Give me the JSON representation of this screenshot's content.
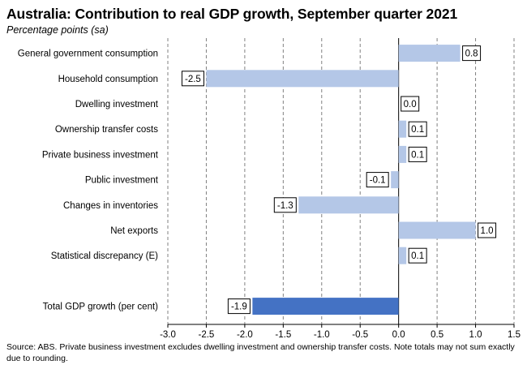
{
  "title": "Australia:  Contribution  to real GDP growth, September quarter 2021",
  "subtitle": "Percentage points (sa)",
  "source": "Source: ABS. Private business investment excludes dwelling investment and ownership transfer costs.  Note totals may not sum exactly due to rounding.",
  "chart_data": {
    "type": "bar",
    "orientation": "horizontal",
    "title": "Australia:  Contribution  to real GDP growth, September quarter 2021",
    "subtitle": "Percentage points (sa)",
    "categories": [
      "General government consumption",
      "Household consumption",
      "Dwelling investment",
      "Ownership transfer costs",
      "Private business investment",
      "Public investment",
      "Changes in inventories",
      "Net exports",
      "Statistical discrepancy (E)",
      "",
      "Total GDP growth (per cent)"
    ],
    "values": [
      0.8,
      -2.5,
      0.0,
      0.1,
      0.1,
      -0.1,
      -1.3,
      1.0,
      0.1,
      null,
      -1.9
    ],
    "data_labels": [
      "0.8",
      "-2.5",
      "0.0",
      "0.1",
      "0.1",
      "-0.1",
      "-1.3",
      "1.0",
      "0.1",
      "",
      "-1.9"
    ],
    "xlim": [
      -3.0,
      1.5
    ],
    "xticks": [
      "-3.0",
      "-2.5",
      "-2.0",
      "-1.5",
      "-1.0",
      "-0.5",
      "0.0",
      "0.5",
      "1.0",
      "1.5"
    ],
    "xtick_values": [
      -3.0,
      -2.5,
      -2.0,
      -1.5,
      -1.0,
      -0.5,
      0.0,
      0.5,
      1.0,
      1.5
    ],
    "grid": "vertical",
    "legend": "none",
    "colors": {
      "components": "#b4c7e7",
      "total": "#4472c4",
      "grid": "#808080"
    }
  }
}
